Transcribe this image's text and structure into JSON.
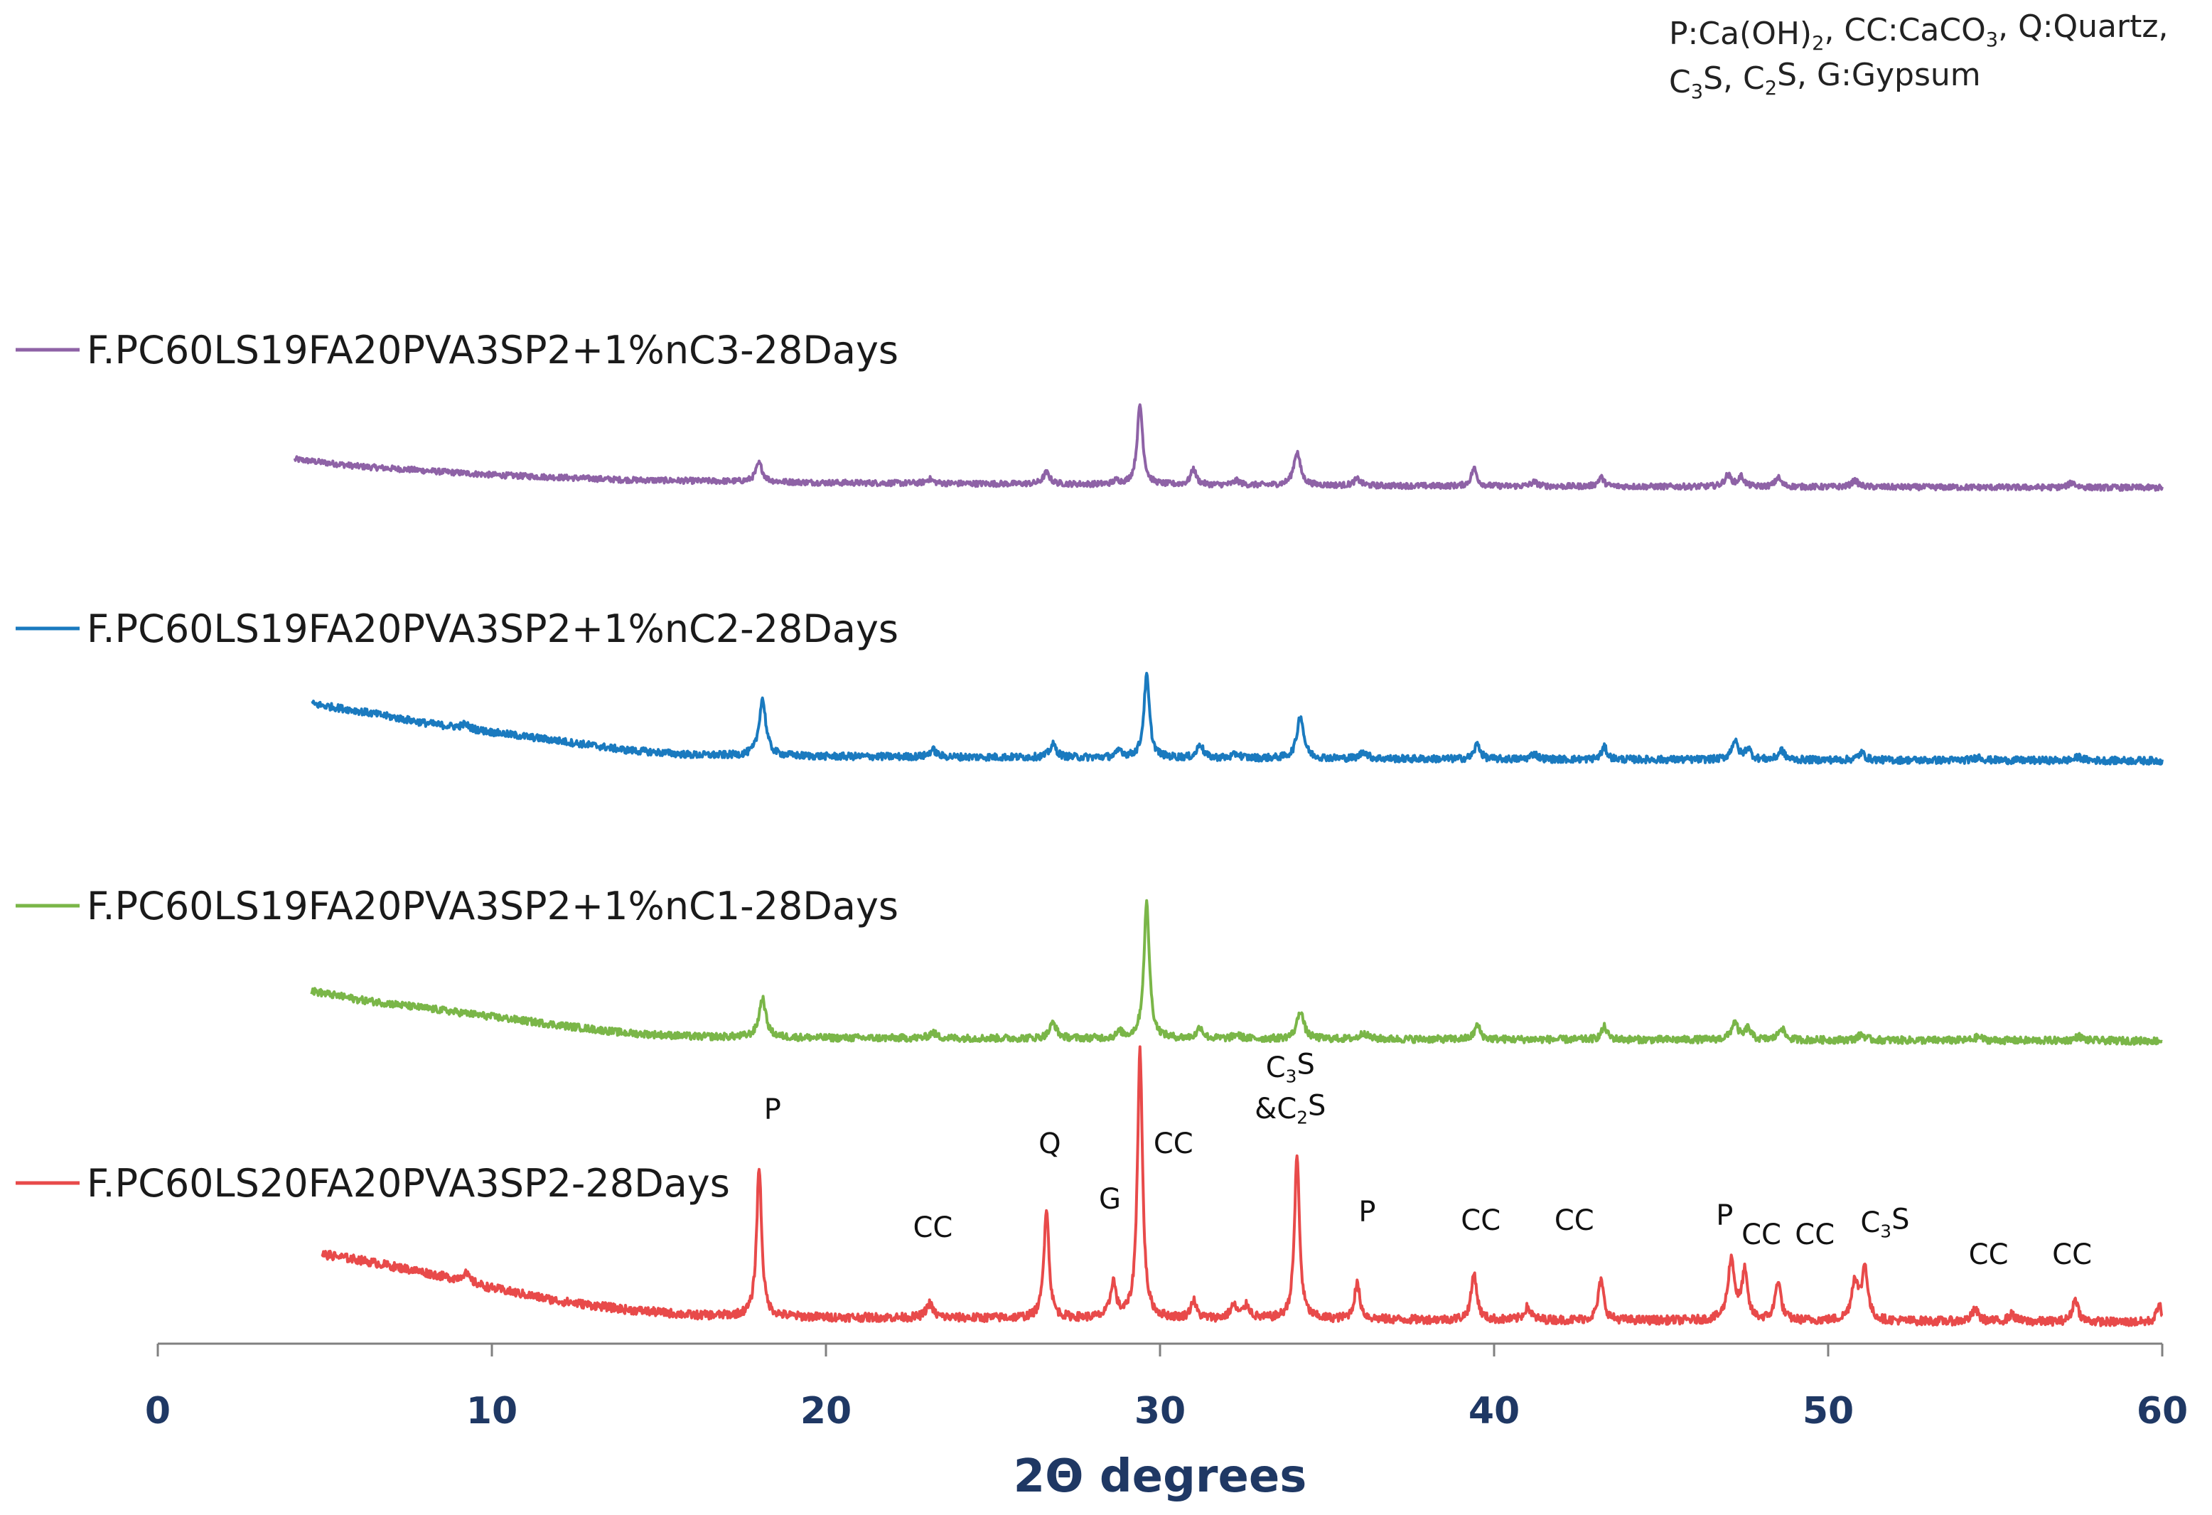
{
  "chart_data": {
    "type": "line",
    "title": "",
    "xlabel": "2Θ degrees",
    "ylabel": "",
    "xlim": [
      0,
      60
    ],
    "x_ticks": [
      0,
      10,
      20,
      30,
      40,
      50,
      60
    ],
    "x_tick_labels": [
      "0",
      "10",
      "20",
      "30",
      "40",
      "50",
      "60"
    ],
    "grid": false,
    "legend_position": "left, beside each pattern",
    "phase_note": {
      "line1": [
        "P:Ca(OH)",
        "2",
        ", CC:CaCO",
        "3",
        ", Q:Quartz,"
      ],
      "line2": [
        "C",
        "3",
        "S, C",
        "2",
        "S, G:Gypsum"
      ]
    },
    "series": [
      {
        "name": "F.PC60LS19FA20PVA3SP2+1%nC3-28Days",
        "color": "#8e62a6",
        "x_start": 4.1,
        "baseline": [
          [
            4.1,
            42
          ],
          [
            6,
            32
          ],
          [
            10,
            20
          ],
          [
            14,
            13
          ],
          [
            20,
            9
          ],
          [
            30,
            6
          ],
          [
            40,
            4
          ],
          [
            50,
            3
          ],
          [
            60,
            2
          ]
        ],
        "peaks": [
          [
            18.0,
            26,
            0.12
          ],
          [
            23.1,
            6,
            0.12
          ],
          [
            26.6,
            16,
            0.12
          ],
          [
            28.7,
            5,
            0.1
          ],
          [
            29.4,
            112,
            0.1
          ],
          [
            31.0,
            22,
            0.1
          ],
          [
            32.3,
            6,
            0.12
          ],
          [
            34.1,
            47,
            0.12
          ],
          [
            35.9,
            9,
            0.12
          ],
          [
            39.4,
            25,
            0.1
          ],
          [
            41.2,
            6,
            0.12
          ],
          [
            43.2,
            13,
            0.1
          ],
          [
            47.0,
            16,
            0.12
          ],
          [
            47.4,
            14,
            0.1
          ],
          [
            48.5,
            13,
            0.1
          ],
          [
            50.8,
            9,
            0.12
          ],
          [
            57.3,
            7,
            0.12
          ]
        ],
        "noise": 4
      },
      {
        "name": "F.PC60LS19FA20PVA3SP2+1%nC2-28Days",
        "color": "#1a7abf",
        "x_start": 4.6,
        "baseline": [
          [
            4.6,
            82
          ],
          [
            6,
            72
          ],
          [
            8,
            55
          ],
          [
            10,
            42
          ],
          [
            12,
            30
          ],
          [
            14,
            17
          ],
          [
            16,
            10
          ],
          [
            20,
            8
          ],
          [
            30,
            6
          ],
          [
            40,
            4
          ],
          [
            50,
            3
          ],
          [
            60,
            2
          ]
        ],
        "peaks": [
          [
            9.2,
            6,
            0.15
          ],
          [
            18.1,
            80,
            0.12
          ],
          [
            23.2,
            10,
            0.12
          ],
          [
            26.8,
            18,
            0.12
          ],
          [
            28.8,
            10,
            0.1
          ],
          [
            29.6,
            115,
            0.1
          ],
          [
            31.2,
            20,
            0.1
          ],
          [
            32.3,
            6,
            0.12
          ],
          [
            34.2,
            60,
            0.12
          ],
          [
            36.1,
            10,
            0.12
          ],
          [
            39.5,
            22,
            0.1
          ],
          [
            41.2,
            8,
            0.12
          ],
          [
            43.3,
            17,
            0.1
          ],
          [
            47.2,
            26,
            0.12
          ],
          [
            47.6,
            16,
            0.1
          ],
          [
            48.6,
            14,
            0.1
          ],
          [
            51.0,
            10,
            0.12
          ],
          [
            54.5,
            5,
            0.12
          ],
          [
            57.5,
            5,
            0.12
          ]
        ],
        "noise": 5
      },
      {
        "name": "F.PC60LS19FA20PVA3SP2+1%nC1-28Days",
        "color": "#7ab648",
        "x_start": 4.6,
        "baseline": [
          [
            4.6,
            72
          ],
          [
            6,
            60
          ],
          [
            8,
            48
          ],
          [
            10,
            36
          ],
          [
            12,
            24
          ],
          [
            14,
            13
          ],
          [
            16,
            8
          ],
          [
            20,
            6
          ],
          [
            30,
            5
          ],
          [
            40,
            4
          ],
          [
            50,
            3
          ],
          [
            60,
            2
          ]
        ],
        "peaks": [
          [
            18.1,
            55,
            0.12
          ],
          [
            23.2,
            8,
            0.12
          ],
          [
            26.8,
            22,
            0.12
          ],
          [
            28.8,
            8,
            0.1
          ],
          [
            29.6,
            190,
            0.1
          ],
          [
            31.2,
            16,
            0.1
          ],
          [
            32.3,
            6,
            0.12
          ],
          [
            34.2,
            40,
            0.12
          ],
          [
            36.1,
            9,
            0.12
          ],
          [
            39.5,
            20,
            0.1
          ],
          [
            43.3,
            18,
            0.1
          ],
          [
            47.2,
            24,
            0.12
          ],
          [
            47.6,
            16,
            0.1
          ],
          [
            48.6,
            18,
            0.1
          ],
          [
            51.0,
            8,
            0.12
          ],
          [
            54.5,
            5,
            0.12
          ],
          [
            57.5,
            6,
            0.12
          ]
        ],
        "noise": 5
      },
      {
        "name": "F.PC60LS20FA20PVA3SP2-28Days",
        "color": "#e84a4a",
        "x_start": 4.9,
        "baseline": [
          [
            4.9,
            98
          ],
          [
            6,
            90
          ],
          [
            8,
            72
          ],
          [
            10,
            50
          ],
          [
            12,
            32
          ],
          [
            14,
            20
          ],
          [
            16,
            12
          ],
          [
            20,
            9
          ],
          [
            30,
            7
          ],
          [
            40,
            5
          ],
          [
            50,
            4
          ],
          [
            60,
            2
          ]
        ],
        "peaks": [
          [
            9.2,
            12,
            0.15
          ],
          [
            18.0,
            210,
            0.09
          ],
          [
            23.1,
            20,
            0.12
          ],
          [
            26.6,
            156,
            0.09
          ],
          [
            28.6,
            50,
            0.1
          ],
          [
            29.4,
            380,
            0.09
          ],
          [
            31.0,
            25,
            0.1
          ],
          [
            32.2,
            18,
            0.12
          ],
          [
            32.6,
            18,
            0.12
          ],
          [
            34.1,
            230,
            0.09
          ],
          [
            35.9,
            50,
            0.1
          ],
          [
            39.4,
            66,
            0.1
          ],
          [
            41.0,
            18,
            0.12
          ],
          [
            43.2,
            56,
            0.1
          ],
          [
            47.1,
            86,
            0.12
          ],
          [
            47.5,
            66,
            0.1
          ],
          [
            48.5,
            56,
            0.1
          ],
          [
            50.8,
            56,
            0.12
          ],
          [
            51.1,
            74,
            0.1
          ],
          [
            54.4,
            16,
            0.12
          ],
          [
            55.5,
            10,
            0.12
          ],
          [
            57.4,
            33,
            0.1
          ],
          [
            59.9,
            26,
            0.08
          ]
        ],
        "noise": 6
      }
    ],
    "annotations": [
      {
        "id": "P1",
        "parts": [
          [
            "P",
            "n"
          ]
        ],
        "x": 18.4,
        "series": 3
      },
      {
        "id": "CC1",
        "parts": [
          [
            "CC",
            "n"
          ]
        ],
        "x": 23.2,
        "series": 3
      },
      {
        "id": "Q",
        "parts": [
          [
            "Q",
            "n"
          ]
        ],
        "x": 26.7,
        "series": 3
      },
      {
        "id": "G",
        "parts": [
          [
            "G",
            "n"
          ]
        ],
        "x": 28.5,
        "series": 3
      },
      {
        "id": "CC2",
        "parts": [
          [
            "CC",
            "n"
          ]
        ],
        "x": 30.4,
        "series": 3
      },
      {
        "id": "C3S_top",
        "parts": [
          [
            "C",
            "n"
          ],
          [
            "3",
            "sub"
          ],
          [
            "S",
            "n"
          ]
        ],
        "x": 33.9,
        "series": 3
      },
      {
        "id": "C2S_bot",
        "parts": [
          [
            "&C",
            "n"
          ],
          [
            "2",
            "sub"
          ],
          [
            "S",
            "n"
          ]
        ],
        "x": 33.9,
        "series": 3
      },
      {
        "id": "P2",
        "parts": [
          [
            "P",
            "n"
          ]
        ],
        "x": 36.2,
        "series": 3
      },
      {
        "id": "CC3",
        "parts": [
          [
            "CC",
            "n"
          ]
        ],
        "x": 39.6,
        "series": 3
      },
      {
        "id": "CC4",
        "parts": [
          [
            "CC",
            "n"
          ]
        ],
        "x": 42.4,
        "series": 3
      },
      {
        "id": "P3",
        "parts": [
          [
            "P",
            "n"
          ]
        ],
        "x": 46.9,
        "series": 3
      },
      {
        "id": "CC5",
        "parts": [
          [
            "CC",
            "n"
          ]
        ],
        "x": 48.0,
        "series": 3
      },
      {
        "id": "CC6",
        "parts": [
          [
            "CC",
            "n"
          ]
        ],
        "x": 49.6,
        "series": 3
      },
      {
        "id": "C3S_r",
        "parts": [
          [
            "C",
            "n"
          ],
          [
            "3",
            "sub"
          ],
          [
            "S",
            "n"
          ]
        ],
        "x": 51.7,
        "series": 3
      },
      {
        "id": "CC7",
        "parts": [
          [
            "CC",
            "n"
          ]
        ],
        "x": 54.8,
        "series": 3
      },
      {
        "id": "CC8",
        "parts": [
          [
            "CC",
            "n"
          ]
        ],
        "x": 57.3,
        "series": 3
      }
    ]
  }
}
